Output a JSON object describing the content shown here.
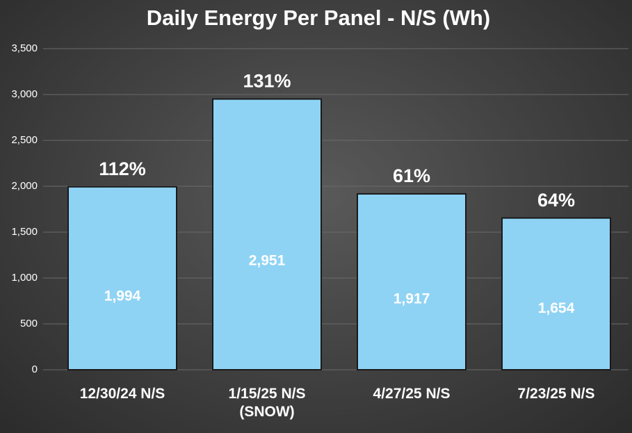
{
  "chart_data": {
    "type": "bar",
    "title": "Daily Energy Per Panel - N/S  (Wh)",
    "categories": [
      "12/30/24 N/S",
      "1/15/25 N/S (SNOW)",
      "4/27/25 N/S",
      "7/23/25 N/S"
    ],
    "values": [
      1994,
      2951,
      1917,
      1654
    ],
    "value_labels": [
      "1,994",
      "2,951",
      "1,917",
      "1,654"
    ],
    "annotations": [
      "112%",
      "131%",
      "61%",
      "64%"
    ],
    "color": "#8fd3f4",
    "ylim": [
      0,
      3500
    ],
    "yticks": [
      0,
      500,
      {
        "value": 1000,
        "label": "1,000"
      },
      {
        "value": 1500,
        "label": "1,500"
      },
      {
        "value": 2000,
        "label": "2,000"
      },
      {
        "value": 2500,
        "label": "2,500"
      },
      {
        "value": 3000,
        "label": "3,000"
      },
      {
        "value": 3500,
        "label": "3,500"
      }
    ],
    "grid": true
  }
}
